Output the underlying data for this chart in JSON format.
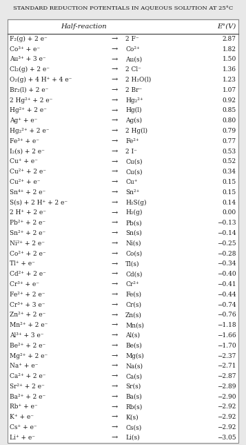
{
  "title": "STANDARD REDUCTION POTENTIALS IN AQUEOUS SOLUTION AT 25°C",
  "col_header_left": "Half-reaction",
  "col_header_right": "E°(V)",
  "rows": [
    [
      "F₂(g) + 2 e⁻",
      "→",
      "2 F⁻",
      "2.87"
    ],
    [
      "Co³⁺ + e⁻",
      "→",
      "Co²⁺",
      "1.82"
    ],
    [
      "Au³⁺ + 3 e⁻",
      "→",
      "Au(s)",
      "1.50"
    ],
    [
      "Cl₂(g) + 2 e⁻",
      "→",
      "2 Cl⁻",
      "1.36"
    ],
    [
      "O₂(g) + 4 H⁺ + 4 e⁻",
      "→",
      "2 H₂O(l)",
      "1.23"
    ],
    [
      "Br₂(l) + 2 e⁻",
      "→",
      "2 Br⁻",
      "1.07"
    ],
    [
      "2 Hg²⁺ + 2 e⁻",
      "→",
      "Hg₂²⁺",
      "0.92"
    ],
    [
      "Hg²⁺ + 2 e⁻",
      "→",
      "Hg(l)",
      "0.85"
    ],
    [
      "Ag⁺ + e⁻",
      "→",
      "Ag(s)",
      "0.80"
    ],
    [
      "Hg₂²⁺ + 2 e⁻",
      "→",
      "2 Hg(l)",
      "0.79"
    ],
    [
      "Fe³⁺ + e⁻",
      "→",
      "Fe²⁺",
      "0.77"
    ],
    [
      "I₂(s) + 2 e⁻",
      "→",
      "2 I⁻",
      "0.53"
    ],
    [
      "Cu⁺ + e⁻",
      "→",
      "Cu(s)",
      "0.52"
    ],
    [
      "Cu²⁺ + 2 e⁻",
      "→",
      "Cu(s)",
      "0.34"
    ],
    [
      "Cu²⁺ + e⁻",
      "→",
      "Cu⁺",
      "0.15"
    ],
    [
      "Sn⁴⁺ + 2 e⁻",
      "→",
      "Sn²⁺",
      "0.15"
    ],
    [
      "S(s) + 2 H⁺ + 2 e⁻",
      "→",
      "H₂S(g)",
      "0.14"
    ],
    [
      "2 H⁺ + 2 e⁻",
      "→",
      "H₂(g)",
      "0.00"
    ],
    [
      "Pb²⁺ + 2 e⁻",
      "→",
      "Pb(s)",
      "−0.13"
    ],
    [
      "Sn²⁺ + 2 e⁻",
      "→",
      "Sn(s)",
      "−0.14"
    ],
    [
      "Ni²⁺ + 2 e⁻",
      "→",
      "Ni(s)",
      "−0.25"
    ],
    [
      "Co²⁺ + 2 e⁻",
      "→",
      "Co(s)",
      "−0.28"
    ],
    [
      "Tl⁺ + e⁻",
      "→",
      "Tl(s)",
      "−0.34"
    ],
    [
      "Cd²⁺ + 2 e⁻",
      "→",
      "Cd(s)",
      "−0.40"
    ],
    [
      "Cr³⁺ + e⁻",
      "→",
      "Cr²⁺",
      "−0.41"
    ],
    [
      "Fe²⁺ + 2 e⁻",
      "→",
      "Fe(s)",
      "−0.44"
    ],
    [
      "Cr³⁺ + 3 e⁻",
      "→",
      "Cr(s)",
      "−0.74"
    ],
    [
      "Zn²⁺ + 2 e⁻",
      "→",
      "Zn(s)",
      "−0.76"
    ],
    [
      "Mn²⁺ + 2 e⁻",
      "→",
      "Mn(s)",
      "−1.18"
    ],
    [
      "Al³⁺ + 3 e⁻",
      "→",
      "Al(s)",
      "−1.66"
    ],
    [
      "Be²⁺ + 2 e⁻",
      "→",
      "Be(s)",
      "−1.70"
    ],
    [
      "Mg²⁺ + 2 e⁻",
      "→",
      "Mg(s)",
      "−2.37"
    ],
    [
      "Na⁺ + e⁻",
      "→",
      "Na(s)",
      "−2.71"
    ],
    [
      "Ca²⁺ + 2 e⁻",
      "→",
      "Ca(s)",
      "−2.87"
    ],
    [
      "Sr²⁺ + 2 e⁻",
      "→",
      "Sr(s)",
      "−2.89"
    ],
    [
      "Ba²⁺ + 2 e⁻",
      "→",
      "Ba(s)",
      "−2.90"
    ],
    [
      "Rb⁺ + e⁻",
      "→",
      "Rb(s)",
      "−2.92"
    ],
    [
      "K⁺ + e⁻",
      "→",
      "K(s)",
      "−2.92"
    ],
    [
      "Cs⁺ + e⁻",
      "→",
      "Cs(s)",
      "−2.92"
    ],
    [
      "Li⁺ + e⁻",
      "→",
      "Li(s)",
      "−3.05"
    ]
  ],
  "fig_bg_color": "#e8e8e8",
  "table_bg_color": "#ffffff",
  "border_color": "#888888",
  "header_line_color": "#555555",
  "text_color": "#1a1a1a",
  "title_color": "#111111",
  "title_fontsize": 6.0,
  "header_fontsize": 7.2,
  "row_fontsize": 6.5,
  "arrow_fontsize": 8.0
}
